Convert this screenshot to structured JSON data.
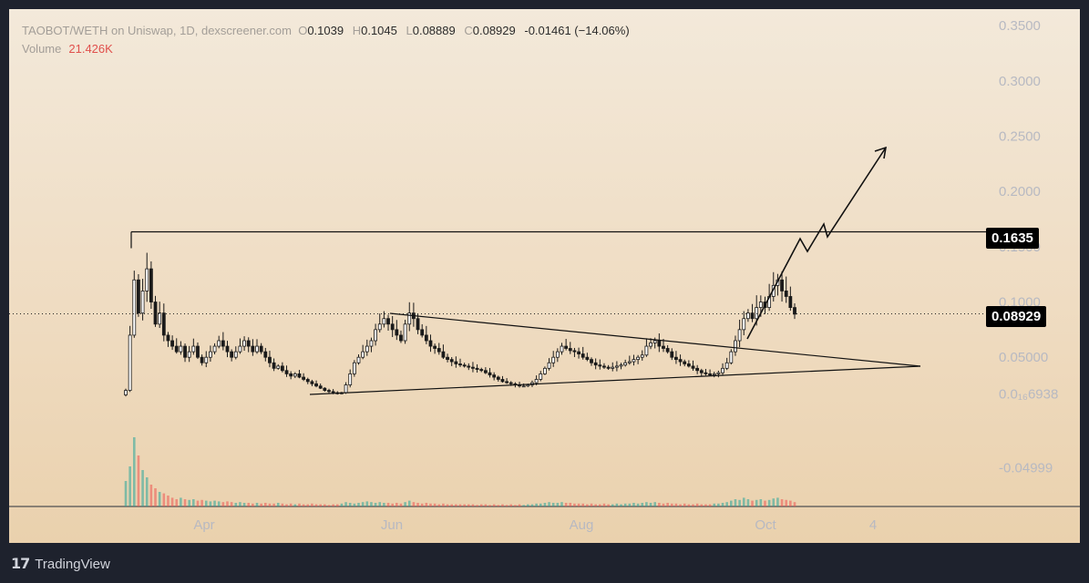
{
  "header": {
    "symbol_line": "TAOBOT/WETH on Uniswap, 1D, dexscreener.com",
    "o_label": "O",
    "o_value": "0.1039",
    "h_label": "H",
    "h_value": "0.1045",
    "l_label": "L",
    "l_value": "0.08889",
    "c_label": "C",
    "c_value": "0.08929",
    "change": "-0.01461 (−14.06%)",
    "volume_label": "Volume",
    "volume_value": "21.426K"
  },
  "price_labels": {
    "resistance": "0.1635",
    "last_price": "0.08929"
  },
  "footer": {
    "logo_icon": "tradingview-logo-icon",
    "brand": "TradingView"
  },
  "colors": {
    "up": "#26a69a",
    "down": "#ef5350",
    "candle": "#1a1a1a",
    "axis_text": "#b7b9c2",
    "drawing": "#111111"
  },
  "chart_data": {
    "type": "candlestick",
    "y_axis": {
      "ticks": [
        0.35,
        0.3,
        0.25,
        0.2,
        0.15,
        0.1,
        0.05,
        0.016938,
        -0.04999
      ],
      "tick_labels": [
        "0.3500",
        "0.3000",
        "0.2500",
        "0.2000",
        "0.1500",
        "0.1000",
        "0.05000",
        "0.0₁₆6938",
        "-0.04999"
      ],
      "range": [
        -0.085,
        0.365
      ]
    },
    "x_axis": {
      "tick_labels": [
        "Apr",
        "Jun",
        "Aug",
        "Oct",
        "4"
      ]
    },
    "close_series": [
      0.02,
      0.07,
      0.12,
      0.09,
      0.11,
      0.13,
      0.1,
      0.08,
      0.09,
      0.07,
      0.065,
      0.06,
      0.055,
      0.06,
      0.05,
      0.055,
      0.06,
      0.05,
      0.045,
      0.05,
      0.055,
      0.06,
      0.065,
      0.06,
      0.055,
      0.05,
      0.055,
      0.06,
      0.065,
      0.06,
      0.055,
      0.06,
      0.055,
      0.05,
      0.045,
      0.04,
      0.042,
      0.038,
      0.035,
      0.033,
      0.035,
      0.032,
      0.03,
      0.028,
      0.026,
      0.024,
      0.022,
      0.02,
      0.019,
      0.018,
      0.017,
      0.018,
      0.025,
      0.035,
      0.045,
      0.05,
      0.055,
      0.06,
      0.065,
      0.075,
      0.08,
      0.085,
      0.08,
      0.075,
      0.07,
      0.065,
      0.08,
      0.09,
      0.085,
      0.075,
      0.07,
      0.065,
      0.06,
      0.058,
      0.055,
      0.05,
      0.048,
      0.046,
      0.044,
      0.043,
      0.042,
      0.041,
      0.04,
      0.039,
      0.038,
      0.036,
      0.034,
      0.032,
      0.03,
      0.028,
      0.027,
      0.026,
      0.025,
      0.024,
      0.024,
      0.025,
      0.027,
      0.03,
      0.035,
      0.04,
      0.045,
      0.05,
      0.055,
      0.06,
      0.058,
      0.056,
      0.055,
      0.053,
      0.05,
      0.048,
      0.045,
      0.043,
      0.042,
      0.041,
      0.04,
      0.041,
      0.042,
      0.043,
      0.045,
      0.046,
      0.048,
      0.05,
      0.052,
      0.06,
      0.063,
      0.065,
      0.06,
      0.058,
      0.055,
      0.05,
      0.048,
      0.046,
      0.044,
      0.042,
      0.04,
      0.038,
      0.036,
      0.035,
      0.034,
      0.035,
      0.036,
      0.04,
      0.045,
      0.055,
      0.065,
      0.075,
      0.085,
      0.09,
      0.085,
      0.095,
      0.1,
      0.095,
      0.105,
      0.115,
      0.12,
      0.11,
      0.105,
      0.095,
      0.089
    ],
    "volume_series": [
      0.35,
      0.55,
      0.95,
      0.7,
      0.5,
      0.4,
      0.3,
      0.25,
      0.2,
      0.18,
      0.15,
      0.12,
      0.1,
      0.12,
      0.1,
      0.09,
      0.1,
      0.08,
      0.09,
      0.08,
      0.07,
      0.08,
      0.07,
      0.06,
      0.07,
      0.06,
      0.05,
      0.06,
      0.05,
      0.05,
      0.04,
      0.05,
      0.04,
      0.05,
      0.04,
      0.04,
      0.05,
      0.04,
      0.03,
      0.04,
      0.03,
      0.04,
      0.03,
      0.03,
      0.04,
      0.03,
      0.03,
      0.03,
      0.02,
      0.03,
      0.03,
      0.04,
      0.06,
      0.05,
      0.04,
      0.05,
      0.06,
      0.07,
      0.06,
      0.05,
      0.06,
      0.05,
      0.05,
      0.04,
      0.05,
      0.04,
      0.06,
      0.08,
      0.06,
      0.05,
      0.04,
      0.05,
      0.04,
      0.04,
      0.03,
      0.04,
      0.03,
      0.03,
      0.03,
      0.03,
      0.03,
      0.03,
      0.03,
      0.02,
      0.03,
      0.03,
      0.02,
      0.03,
      0.02,
      0.03,
      0.02,
      0.03,
      0.02,
      0.03,
      0.02,
      0.03,
      0.03,
      0.04,
      0.04,
      0.05,
      0.06,
      0.05,
      0.05,
      0.06,
      0.05,
      0.05,
      0.04,
      0.04,
      0.04,
      0.03,
      0.04,
      0.03,
      0.03,
      0.04,
      0.03,
      0.03,
      0.04,
      0.03,
      0.04,
      0.04,
      0.05,
      0.04,
      0.05,
      0.06,
      0.05,
      0.06,
      0.05,
      0.04,
      0.05,
      0.04,
      0.04,
      0.03,
      0.04,
      0.03,
      0.03,
      0.04,
      0.03,
      0.03,
      0.03,
      0.04,
      0.04,
      0.05,
      0.06,
      0.08,
      0.1,
      0.09,
      0.12,
      0.1,
      0.08,
      0.09,
      0.1,
      0.08,
      0.09,
      0.11,
      0.12,
      0.1,
      0.09,
      0.08,
      0.06
    ],
    "annotations": {
      "horizontal_resistance": 0.1635,
      "last_price_line": 0.08929,
      "upper_trendline": "descending line from the June high through the September breakout to the apex",
      "lower_trendline": "rising line from the May low to the apex",
      "projection": "zig-zag arrow pointing up-right toward 0.2500"
    }
  }
}
